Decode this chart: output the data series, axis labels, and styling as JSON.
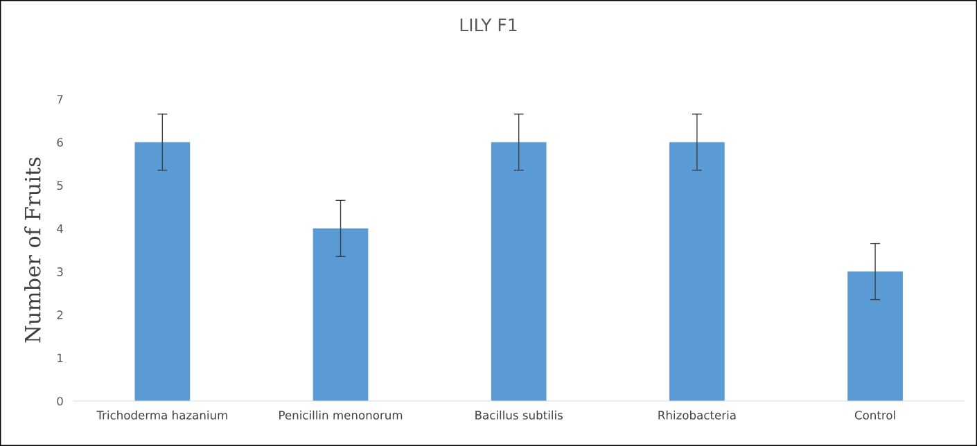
{
  "chart_data": {
    "type": "bar",
    "title": "LILY F1",
    "ylabel": "Number of Fruits",
    "categories": [
      "Trichoderma hazanium",
      "Penicillin menonorum",
      "Bacillus subtilis",
      "Rhizobacteria",
      "Control"
    ],
    "values": [
      6,
      4,
      6,
      6,
      3
    ],
    "errors": [
      0.65,
      0.65,
      0.65,
      0.65,
      0.65
    ],
    "color": "#5b9bd5",
    "ylim": [
      0,
      7
    ],
    "yticks": [
      0,
      1,
      2,
      3,
      4,
      5,
      6,
      7
    ],
    "grid": false,
    "legend": false
  }
}
